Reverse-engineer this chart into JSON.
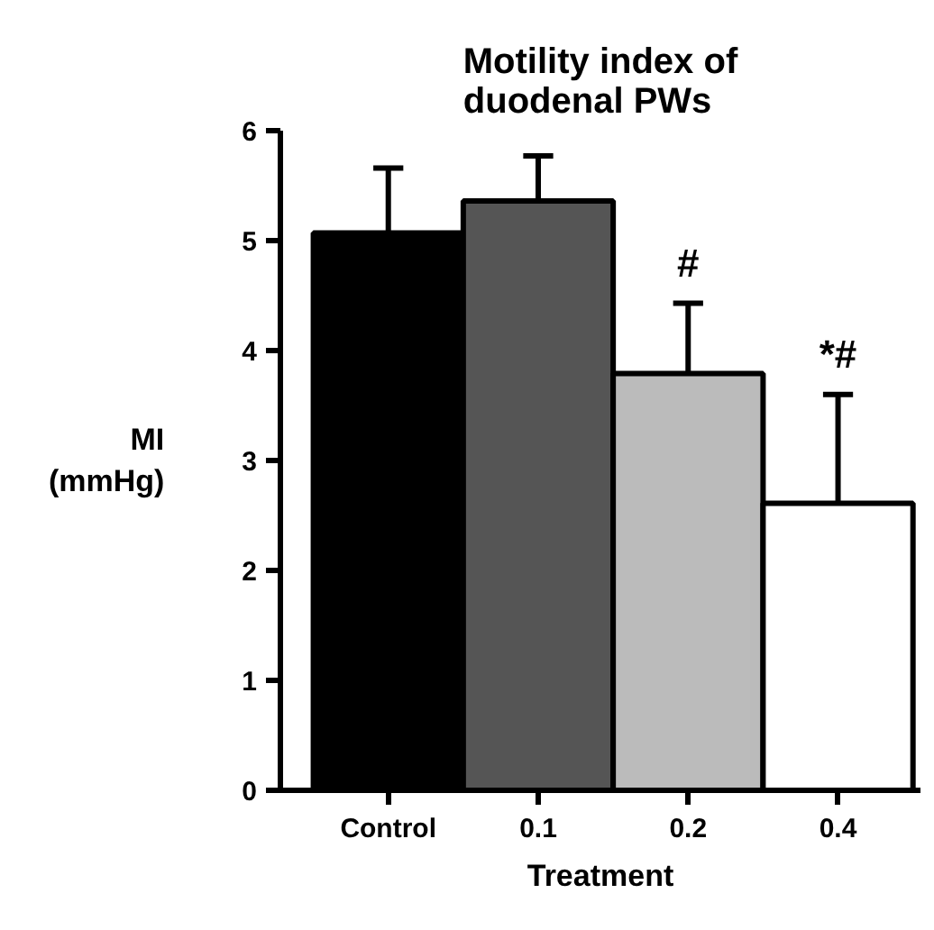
{
  "chart_data": {
    "type": "bar",
    "title": "Motility index of duodenal PWs",
    "xlabel": "Treatment",
    "ylabel": "MI (mmHg)",
    "categories": [
      "Control",
      "0.1",
      "0.2",
      "0.4"
    ],
    "values": [
      5.07,
      5.36,
      3.79,
      2.61
    ],
    "colors": [
      "#000000",
      "#555555",
      "#bbbbbb",
      "#ffffff"
    ],
    "errors": [
      [
        5.07,
        5.66
      ],
      [
        5.36,
        5.77
      ],
      [
        3.79,
        4.43
      ],
      [
        2.61,
        3.6
      ]
    ],
    "annotations": [
      {
        "text": "#",
        "x": "0.2",
        "y": 4.43
      },
      {
        "text": "*#",
        "x": "0.4",
        "y": 3.6
      }
    ],
    "ylim": [
      0,
      6
    ],
    "yticks": [
      0,
      1,
      2,
      3,
      4,
      5,
      6
    ],
    "grid": false
  }
}
